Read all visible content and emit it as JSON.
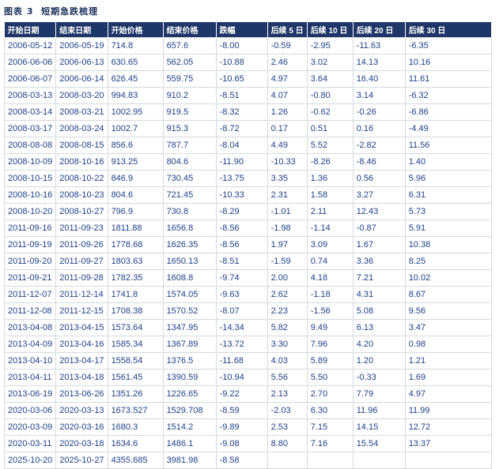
{
  "header": {
    "title": "图表 3  短期急跌梳理"
  },
  "table": {
    "columns": [
      "开始日期",
      "结束日期",
      "开始价格",
      "结束价格",
      "跌幅",
      "后续 5 日",
      "后续 10 日",
      "后续 20 日",
      "后续 30 日"
    ],
    "rows": [
      [
        "2006-05-12",
        "2006-05-19",
        "714.8",
        "657.6",
        "-8.00",
        "-0.59",
        "-2.95",
        "-11.63",
        "-6.35"
      ],
      [
        "2006-06-06",
        "2006-06-13",
        "630.65",
        "562.05",
        "-10.88",
        "2.46",
        "3.02",
        "14.13",
        "10.16"
      ],
      [
        "2006-06-07",
        "2006-06-14",
        "626.45",
        "559.75",
        "-10.65",
        "4.97",
        "3.64",
        "16.40",
        "11.61"
      ],
      [
        "2008-03-13",
        "2008-03-20",
        "994.83",
        "910.2",
        "-8.51",
        "4.07",
        "-0.80",
        "3.14",
        "-6.32"
      ],
      [
        "2008-03-14",
        "2008-03-21",
        "1002.95",
        "919.5",
        "-8.32",
        "1.26",
        "-0.62",
        "-0.26",
        "-6.86"
      ],
      [
        "2008-03-17",
        "2008-03-24",
        "1002.7",
        "915.3",
        "-8.72",
        "0.17",
        "0.51",
        "0.16",
        "-4.49"
      ],
      [
        "2008-08-08",
        "2008-08-15",
        "856.6",
        "787.7",
        "-8.04",
        "4.49",
        "5.52",
        "-2.82",
        "11.56"
      ],
      [
        "2008-10-09",
        "2008-10-16",
        "913.25",
        "804.6",
        "-11.90",
        "-10.33",
        "-8.26",
        "-8.46",
        "1.40"
      ],
      [
        "2008-10-15",
        "2008-10-22",
        "846.9",
        "730.45",
        "-13.75",
        "3.35",
        "1.36",
        "0.56",
        "5.96"
      ],
      [
        "2008-10-16",
        "2008-10-23",
        "804.6",
        "721.45",
        "-10.33",
        "2.31",
        "1.58",
        "3.27",
        "6.31"
      ],
      [
        "2008-10-20",
        "2008-10-27",
        "796.9",
        "730.8",
        "-8.29",
        "-1.01",
        "2.11",
        "12.43",
        "5.73"
      ],
      [
        "2011-09-16",
        "2011-09-23",
        "1811.88",
        "1656.8",
        "-8.56",
        "-1.98",
        "-1.14",
        "-0.87",
        "5.91"
      ],
      [
        "2011-09-19",
        "2011-09-26",
        "1778.68",
        "1626.35",
        "-8.56",
        "1.97",
        "3.09",
        "1.67",
        "10.38"
      ],
      [
        "2011-09-20",
        "2011-09-27",
        "1803.63",
        "1650.13",
        "-8.51",
        "-1.59",
        "0.74",
        "3.36",
        "8.25"
      ],
      [
        "2011-09-21",
        "2011-09-28",
        "1782.35",
        "1608.8",
        "-9.74",
        "2.00",
        "4.18",
        "7.21",
        "10.02"
      ],
      [
        "2011-12-07",
        "2011-12-14",
        "1741.8",
        "1574.05",
        "-9.63",
        "2.62",
        "-1.18",
        "4.31",
        "8.67"
      ],
      [
        "2011-12-08",
        "2011-12-15",
        "1708.38",
        "1570.52",
        "-8.07",
        "2.23",
        "-1.56",
        "5.08",
        "9.56"
      ],
      [
        "2013-04-08",
        "2013-04-15",
        "1573.64",
        "1347.95",
        "-14.34",
        "5.82",
        "9.49",
        "6.13",
        "3.47"
      ],
      [
        "2013-04-09",
        "2013-04-16",
        "1585.34",
        "1367.89",
        "-13.72",
        "3.30",
        "7.96",
        "4.20",
        "0.98"
      ],
      [
        "2013-04-10",
        "2013-04-17",
        "1558.54",
        "1376.5",
        "-11.68",
        "4.03",
        "5.89",
        "1.20",
        "1.21"
      ],
      [
        "2013-04-11",
        "2013-04-18",
        "1561.45",
        "1390.59",
        "-10.94",
        "5.56",
        "5.50",
        "-0.33",
        "1.69"
      ],
      [
        "2013-06-19",
        "2013-06-26",
        "1351.26",
        "1226.65",
        "-9.22",
        "2.13",
        "2.70",
        "7.79",
        "4.97"
      ],
      [
        "2020-03-06",
        "2020-03-13",
        "1673.527",
        "1529.708",
        "-8.59",
        "-2.03",
        "6.30",
        "11.96",
        "11.99"
      ],
      [
        "2020-03-09",
        "2020-03-16",
        "1680.3",
        "1514.2",
        "-9.89",
        "2.53",
        "7.15",
        "14.15",
        "12.72"
      ],
      [
        "2020-03-11",
        "2020-03-18",
        "1634.6",
        "1486.1",
        "-9.08",
        "8.80",
        "7.16",
        "15.54",
        "13.37"
      ],
      [
        "2025-10-20",
        "2025-10-27",
        "4355.685",
        "3981.98",
        "-8.58",
        null,
        null,
        null,
        null
      ]
    ]
  }
}
